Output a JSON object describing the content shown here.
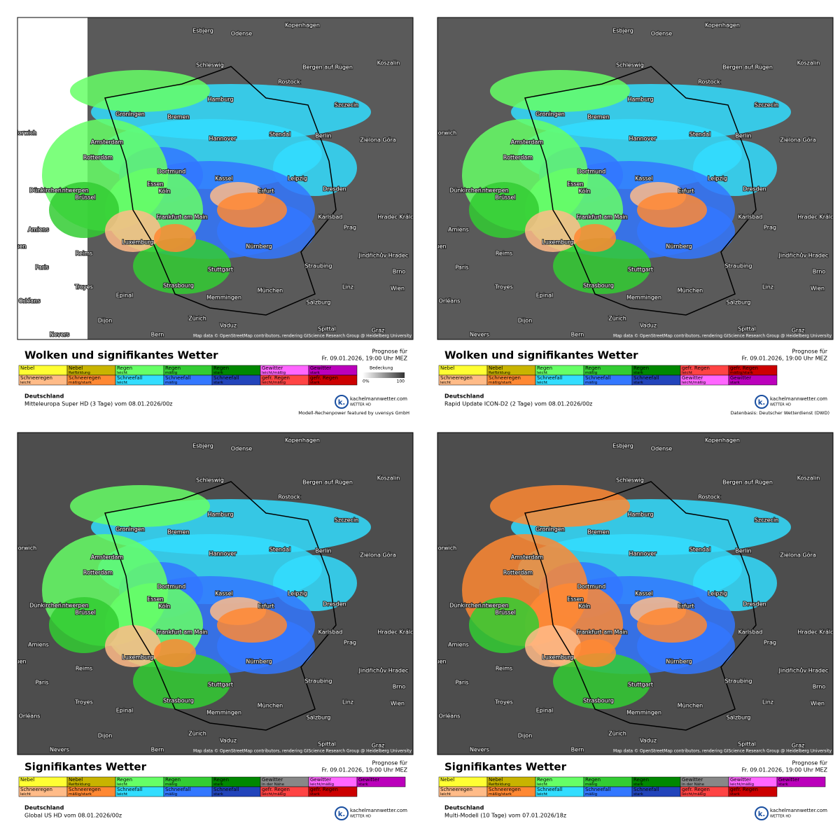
{
  "cities": [
    "Esbjerg",
    "Odense",
    "Kopenhagen",
    "Schleswig",
    "Bergen auf Rügen",
    "Rostock",
    "Koszalin",
    "Hamburg",
    "Szczecin",
    "Groningen",
    "Bremen",
    "Amsterdam",
    "Hannover",
    "Stendal",
    "Berlin",
    "Zielona Góra",
    "Rotterdam",
    "Dortmund",
    "Essen",
    "Antwerpen",
    "Kassel",
    "Leipzig",
    "Dresden",
    "Dünkirchen",
    "Brüssel",
    "Köln",
    "Erfurt",
    "Frankfurt am Main",
    "Karlsbad",
    "Hradec Králové",
    "Prag",
    "Amiens",
    "Luxemburg",
    "Reims",
    "Nürnberg",
    "Jindřichův Hradec",
    "Paris",
    "Rouen",
    "Stuttgart",
    "Straubing",
    "Brno",
    "Troyes",
    "Strasbourg",
    "Epinal",
    "Linz",
    "Wien",
    "München",
    "Memmingen",
    "Salzburg",
    "Orléans",
    "Dijon",
    "Zürich",
    "Vaduz",
    "Bern",
    "Spittal",
    "Graz",
    "Nevers",
    "Norwich"
  ],
  "panels": [
    {
      "title": "Wolken und signifikantes Wetter",
      "forecast_label": "Prognose für",
      "forecast_time": "Fr. 09.01.2026, 19:00 Uhr MEZ",
      "legend": [
        [
          {
            "label": "Nebel",
            "color": "#ffff33"
          },
          {
            "label": "Nebel",
            "sub": "Reifbildung",
            "color": "#c8b400"
          },
          {
            "label": "Regen",
            "sub": "leicht",
            "color": "#66ff66"
          },
          {
            "label": "Regen",
            "sub": "mäßig",
            "color": "#33cc33"
          },
          {
            "label": "Regen",
            "sub": "stark",
            "color": "#008800"
          },
          {
            "label": "Gewitter",
            "sub": "leicht/mäßig",
            "color": "#ff66ff"
          },
          {
            "label": "Gewitter",
            "sub": "stark",
            "color": "#bb00bb"
          }
        ],
        [
          {
            "label": "Schneeregen",
            "sub": "leicht",
            "color": "#ffbb88"
          },
          {
            "label": "Schneeregen",
            "sub": "mäßig/stark",
            "color": "#ff8833"
          },
          {
            "label": "Schneefall",
            "sub": "leicht",
            "color": "#33ddff"
          },
          {
            "label": "Schneefall",
            "sub": "mäßig",
            "color": "#3377ff"
          },
          {
            "label": "Schneefall",
            "sub": "stark",
            "color": "#2244bb"
          },
          {
            "label": "gefr. Regen",
            "sub": "leicht/mäßig",
            "color": "#ff4444"
          },
          {
            "label": "gefr. Regen",
            "sub": "stark",
            "color": "#cc0000"
          }
        ]
      ],
      "cover": {
        "label": "Bedeckung",
        "min": "0%",
        "max": "100"
      },
      "region": "Deutschland",
      "model": "Mitteleuropa Super HD (3 Tage) vom 08.01.2026/00z",
      "credit": "Modell-Rechenpower featured by uvensys GmbH",
      "attribution": "Map data © OpenStreetMap contributors, rendering GIScience Research Group @ Heidelberg University",
      "logo": {
        "letter": "k.",
        "site": "kachelmannwetter.com",
        "brand": "WETTER HD"
      }
    },
    {
      "title": "Wolken und signifikantes Wetter",
      "forecast_label": "Prognose für",
      "forecast_time": "Fr. 09.01.2026, 19:00 Uhr MEZ",
      "legend": [
        [
          {
            "label": "Nebel",
            "color": "#ffff33"
          },
          {
            "label": "Nebel",
            "sub": "Reifbildung",
            "color": "#c8b400"
          },
          {
            "label": "Regen",
            "sub": "leicht",
            "color": "#66ff66"
          },
          {
            "label": "Regen",
            "sub": "mäßig",
            "color": "#33cc33"
          },
          {
            "label": "Regen",
            "sub": "stark",
            "color": "#008800"
          },
          {
            "label": "gefr. Regen",
            "sub": "leicht",
            "color": "#ff4444"
          },
          {
            "label": "gefr. Regen",
            "sub": "mäßig/stark",
            "color": "#cc0000"
          }
        ],
        [
          {
            "label": "Schneeregen",
            "sub": "leicht",
            "color": "#ffbb88"
          },
          {
            "label": "Schneeregen",
            "sub": "mäßig/stark",
            "color": "#ff8833"
          },
          {
            "label": "Schneefall",
            "sub": "leicht",
            "color": "#33ddff"
          },
          {
            "label": "Schneefall",
            "sub": "mäßig",
            "color": "#3377ff"
          },
          {
            "label": "Schneefall",
            "sub": "stark",
            "color": "#2244bb"
          },
          {
            "label": "Gewitter",
            "sub": "leicht/mäßig",
            "color": "#ff66ff"
          },
          {
            "label": "Gewitter",
            "sub": "stark",
            "color": "#bb00bb"
          }
        ]
      ],
      "region": "Deutschland",
      "model": "Rapid Update ICON-D2 (2 Tage) vom 08.01.2026/00z",
      "credit": "Datenbasis: Deutscher Wetterdienst (DWD)",
      "attribution": "Map data © OpenStreetMap contributors, rendering GIScience Research Group @ Heidelberg University",
      "logo": {
        "letter": "k.",
        "site": "kachelmannwetter.com",
        "brand": "WETTER HD"
      }
    },
    {
      "title": "Signifikantes Wetter",
      "forecast_label": "Prognose für",
      "forecast_time": "Fr. 09.01.2026, 19:00 Uhr MEZ",
      "legend": [
        [
          {
            "label": "Nebel",
            "color": "#ffff33"
          },
          {
            "label": "Nebel",
            "sub": "Reifbildung",
            "color": "#c8b400"
          },
          {
            "label": "Regen",
            "sub": "leicht",
            "color": "#66ff66"
          },
          {
            "label": "Regen",
            "sub": "mäßig",
            "color": "#33cc33"
          },
          {
            "label": "Regen",
            "sub": "stark",
            "color": "#008800"
          },
          {
            "label": "Gewitter",
            "sub": "in der Nähe",
            "color": "#888888"
          },
          {
            "label": "Gewitter",
            "sub": "leicht/mäßig",
            "color": "#ff66ff"
          },
          {
            "label": "Gewitter",
            "sub": "stark",
            "color": "#bb00bb"
          }
        ],
        [
          {
            "label": "Schneeregen",
            "sub": "leicht",
            "color": "#ffbb88"
          },
          {
            "label": "Schneeregen",
            "sub": "mäßig/stark",
            "color": "#ff8833"
          },
          {
            "label": "Schneefall",
            "sub": "leicht",
            "color": "#33ddff"
          },
          {
            "label": "Schneefall",
            "sub": "mäßig",
            "color": "#3377ff"
          },
          {
            "label": "Schneefall",
            "sub": "stark",
            "color": "#2244bb"
          },
          {
            "label": "gefr. Regen",
            "sub": "leicht/mäßig",
            "color": "#ff4444"
          },
          {
            "label": "gefr. Regen",
            "sub": "stark",
            "color": "#cc0000"
          }
        ]
      ],
      "region": "Deutschland",
      "model": "Global US HD vom 08.01.2026/00z",
      "attribution": "Map data © OpenStreetMap contributors, rendering GIScience Research Group @ Heidelberg University",
      "logo": {
        "letter": "k.",
        "site": "kachelmannwetter.com",
        "brand": "WETTER HD"
      }
    },
    {
      "title": "Signifikantes Wetter",
      "forecast_label": "Prognose für",
      "forecast_time": "Fr. 09.01.2026, 19:00 Uhr MEZ",
      "legend": [
        [
          {
            "label": "Nebel",
            "color": "#ffff33"
          },
          {
            "label": "Nebel",
            "sub": "Reifbildung",
            "color": "#c8b400"
          },
          {
            "label": "Regen",
            "sub": "leicht",
            "color": "#66ff66"
          },
          {
            "label": "Regen",
            "sub": "mäßig",
            "color": "#33cc33"
          },
          {
            "label": "Regen",
            "sub": "stark",
            "color": "#008800"
          },
          {
            "label": "Gewitter",
            "sub": "in der Nähe",
            "color": "#888888"
          },
          {
            "label": "Gewitter",
            "sub": "leicht/mäßig",
            "color": "#ff66ff"
          },
          {
            "label": "Gewitter",
            "sub": "stark",
            "color": "#bb00bb"
          }
        ],
        [
          {
            "label": "Schneeregen",
            "sub": "leicht",
            "color": "#ffbb88"
          },
          {
            "label": "Schneeregen",
            "sub": "mäßig/stark",
            "color": "#ff8833"
          },
          {
            "label": "Schneefall",
            "sub": "leicht",
            "color": "#33ddff"
          },
          {
            "label": "Schneefall",
            "sub": "mäßig",
            "color": "#3377ff"
          },
          {
            "label": "Schneefall",
            "sub": "stark",
            "color": "#2244bb"
          },
          {
            "label": "gefr. Regen",
            "sub": "leicht/mäßig",
            "color": "#ff4444"
          },
          {
            "label": "gefr. Regen",
            "sub": "stark",
            "color": "#cc0000"
          }
        ]
      ],
      "region": "Deutschland",
      "model": "Multi-Modell (10 Tage) vom 07.01.2026/18z",
      "attribution": "Map data © OpenStreetMap contributors, rendering GIScience Research Group @ Heidelberg University",
      "logo": {
        "letter": "k.",
        "site": "kachelmannwetter.com",
        "brand": "WETTER HD"
      }
    }
  ]
}
